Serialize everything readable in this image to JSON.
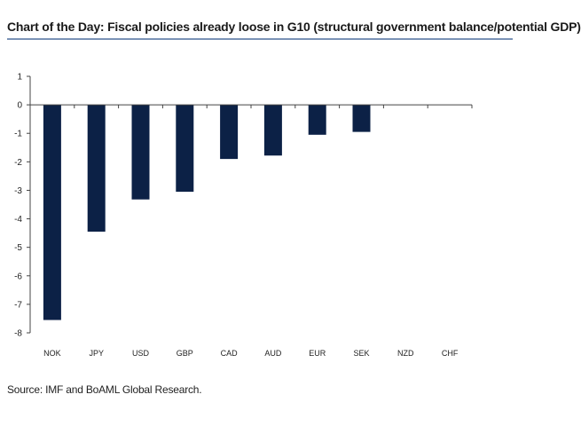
{
  "title": "Chart of the Day: Fiscal policies already loose in G10 (structural government balance/potential GDP)",
  "source": "Source: IMF and BoAML Global Research.",
  "chart_data": {
    "type": "bar",
    "title": "Chart of the Day: Fiscal policies already loose in G10 (structural government balance/potential GDP)",
    "xlabel": "",
    "ylabel": "",
    "categories": [
      "NOK",
      "JPY",
      "USD",
      "GBP",
      "CAD",
      "AUD",
      "EUR",
      "SEK",
      "NZD",
      "CHF"
    ],
    "values": [
      -7.55,
      -4.45,
      -3.32,
      -3.05,
      -1.9,
      -1.78,
      -1.05,
      -0.95,
      0,
      0
    ],
    "ylim": [
      -8,
      1
    ],
    "yticks": [
      1,
      0,
      -1,
      -2,
      -3,
      -4,
      -5,
      -6,
      -7,
      -8
    ],
    "grid": false,
    "legend": "none",
    "bar_color": "#0c2146",
    "axis_color": "#444444"
  }
}
